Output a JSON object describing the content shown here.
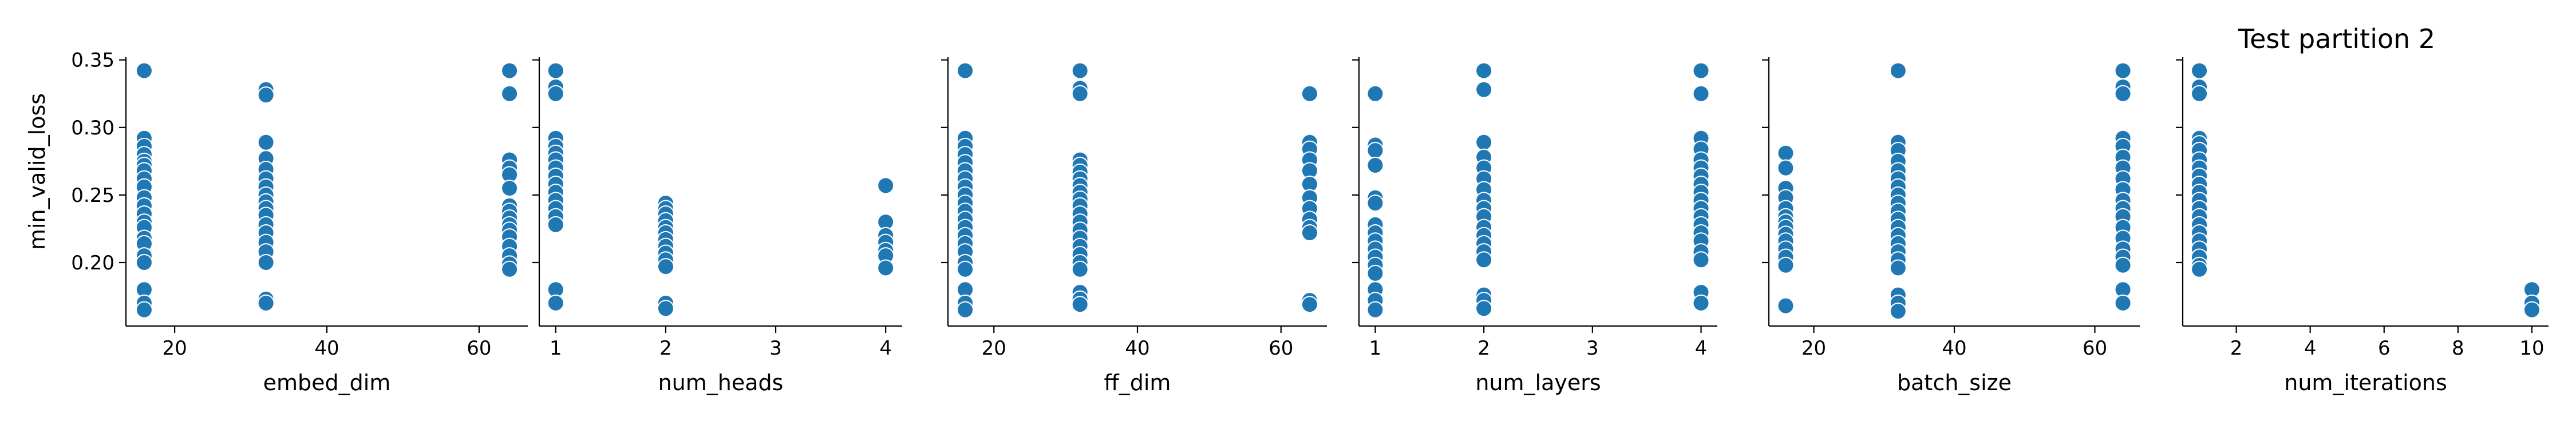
{
  "figure": {
    "title": "Test partition 2",
    "ylabel": "min_valid_loss",
    "marker_color": "#1f77b4",
    "marker_edge_color": "#ffffff"
  },
  "chart_data": [
    {
      "type": "scatter",
      "xlabel": "embed_dim",
      "ylabel": "min_valid_loss",
      "xlim": [
        13.6,
        66.4
      ],
      "ylim": [
        0.153,
        0.352
      ],
      "xticks": [
        20,
        40,
        60
      ],
      "yticks": [
        0.2,
        0.25,
        0.3,
        0.35
      ],
      "grid": false,
      "points": [
        [
          16,
          0.342
        ],
        [
          16,
          0.292
        ],
        [
          16,
          0.286
        ],
        [
          16,
          0.28
        ],
        [
          16,
          0.275
        ],
        [
          16,
          0.272
        ],
        [
          16,
          0.268
        ],
        [
          16,
          0.262
        ],
        [
          16,
          0.256
        ],
        [
          16,
          0.248
        ],
        [
          16,
          0.242
        ],
        [
          16,
          0.236
        ],
        [
          16,
          0.23
        ],
        [
          16,
          0.226
        ],
        [
          16,
          0.218
        ],
        [
          16,
          0.214
        ],
        [
          16,
          0.205
        ],
        [
          16,
          0.2
        ],
        [
          16,
          0.18
        ],
        [
          16,
          0.17
        ],
        [
          16,
          0.165
        ],
        [
          32,
          0.328
        ],
        [
          32,
          0.324
        ],
        [
          32,
          0.289
        ],
        [
          32,
          0.277
        ],
        [
          32,
          0.269
        ],
        [
          32,
          0.262
        ],
        [
          32,
          0.256
        ],
        [
          32,
          0.25
        ],
        [
          32,
          0.245
        ],
        [
          32,
          0.24
        ],
        [
          32,
          0.235
        ],
        [
          32,
          0.228
        ],
        [
          32,
          0.222
        ],
        [
          32,
          0.215
        ],
        [
          32,
          0.208
        ],
        [
          32,
          0.2
        ],
        [
          32,
          0.173
        ],
        [
          32,
          0.17
        ],
        [
          64,
          0.342
        ],
        [
          64,
          0.325
        ],
        [
          64,
          0.276
        ],
        [
          64,
          0.27
        ],
        [
          64,
          0.265
        ],
        [
          64,
          0.255
        ],
        [
          64,
          0.242
        ],
        [
          64,
          0.238
        ],
        [
          64,
          0.233
        ],
        [
          64,
          0.228
        ],
        [
          64,
          0.224
        ],
        [
          64,
          0.219
        ],
        [
          64,
          0.212
        ],
        [
          64,
          0.205
        ],
        [
          64,
          0.199
        ],
        [
          64,
          0.195
        ]
      ]
    },
    {
      "type": "scatter",
      "xlabel": "num_heads",
      "ylim": [
        0.153,
        0.352
      ],
      "xlim": [
        0.85,
        4.15
      ],
      "xticks": [
        1,
        2,
        3,
        4
      ],
      "grid": false,
      "points": [
        [
          1,
          0.342
        ],
        [
          1,
          0.33
        ],
        [
          1,
          0.325
        ],
        [
          1,
          0.292
        ],
        [
          1,
          0.286
        ],
        [
          1,
          0.281
        ],
        [
          1,
          0.276
        ],
        [
          1,
          0.27
        ],
        [
          1,
          0.264
        ],
        [
          1,
          0.258
        ],
        [
          1,
          0.252
        ],
        [
          1,
          0.246
        ],
        [
          1,
          0.24
        ],
        [
          1,
          0.234
        ],
        [
          1,
          0.228
        ],
        [
          1,
          0.18
        ],
        [
          1,
          0.17
        ],
        [
          2,
          0.244
        ],
        [
          2,
          0.24
        ],
        [
          2,
          0.236
        ],
        [
          2,
          0.231
        ],
        [
          2,
          0.226
        ],
        [
          2,
          0.222
        ],
        [
          2,
          0.217
        ],
        [
          2,
          0.212
        ],
        [
          2,
          0.207
        ],
        [
          2,
          0.202
        ],
        [
          2,
          0.197
        ],
        [
          2,
          0.17
        ],
        [
          2,
          0.166
        ],
        [
          4,
          0.257
        ],
        [
          4,
          0.23
        ],
        [
          4,
          0.22
        ],
        [
          4,
          0.215
        ],
        [
          4,
          0.209
        ],
        [
          4,
          0.205
        ],
        [
          4,
          0.196
        ]
      ]
    },
    {
      "type": "scatter",
      "xlabel": "ff_dim",
      "ylim": [
        0.153,
        0.352
      ],
      "xlim": [
        13.6,
        66.4
      ],
      "xticks": [
        20,
        40,
        60
      ],
      "grid": false,
      "points": [
        [
          16,
          0.342
        ],
        [
          16,
          0.292
        ],
        [
          16,
          0.286
        ],
        [
          16,
          0.28
        ],
        [
          16,
          0.274
        ],
        [
          16,
          0.268
        ],
        [
          16,
          0.262
        ],
        [
          16,
          0.256
        ],
        [
          16,
          0.25
        ],
        [
          16,
          0.244
        ],
        [
          16,
          0.238
        ],
        [
          16,
          0.232
        ],
        [
          16,
          0.226
        ],
        [
          16,
          0.22
        ],
        [
          16,
          0.214
        ],
        [
          16,
          0.208
        ],
        [
          16,
          0.2
        ],
        [
          16,
          0.195
        ],
        [
          16,
          0.18
        ],
        [
          16,
          0.17
        ],
        [
          16,
          0.165
        ],
        [
          32,
          0.342
        ],
        [
          32,
          0.329
        ],
        [
          32,
          0.325
        ],
        [
          32,
          0.276
        ],
        [
          32,
          0.272
        ],
        [
          32,
          0.267
        ],
        [
          32,
          0.262
        ],
        [
          32,
          0.257
        ],
        [
          32,
          0.252
        ],
        [
          32,
          0.247
        ],
        [
          32,
          0.242
        ],
        [
          32,
          0.236
        ],
        [
          32,
          0.23
        ],
        [
          32,
          0.224
        ],
        [
          32,
          0.218
        ],
        [
          32,
          0.212
        ],
        [
          32,
          0.206
        ],
        [
          32,
          0.2
        ],
        [
          32,
          0.195
        ],
        [
          32,
          0.178
        ],
        [
          32,
          0.173
        ],
        [
          32,
          0.169
        ],
        [
          64,
          0.325
        ],
        [
          64,
          0.289
        ],
        [
          64,
          0.284
        ],
        [
          64,
          0.276
        ],
        [
          64,
          0.268
        ],
        [
          64,
          0.258
        ],
        [
          64,
          0.248
        ],
        [
          64,
          0.24
        ],
        [
          64,
          0.232
        ],
        [
          64,
          0.226
        ],
        [
          64,
          0.222
        ],
        [
          64,
          0.172
        ],
        [
          64,
          0.169
        ]
      ]
    },
    {
      "type": "scatter",
      "xlabel": "num_layers",
      "ylim": [
        0.153,
        0.352
      ],
      "xlim": [
        0.85,
        4.15
      ],
      "xticks": [
        1,
        2,
        3,
        4
      ],
      "grid": false,
      "points": [
        [
          1,
          0.325
        ],
        [
          1,
          0.287
        ],
        [
          1,
          0.283
        ],
        [
          1,
          0.272
        ],
        [
          1,
          0.248
        ],
        [
          1,
          0.244
        ],
        [
          1,
          0.228
        ],
        [
          1,
          0.222
        ],
        [
          1,
          0.216
        ],
        [
          1,
          0.21
        ],
        [
          1,
          0.204
        ],
        [
          1,
          0.198
        ],
        [
          1,
          0.192
        ],
        [
          1,
          0.18
        ],
        [
          1,
          0.172
        ],
        [
          1,
          0.165
        ],
        [
          2,
          0.342
        ],
        [
          2,
          0.328
        ],
        [
          2,
          0.289
        ],
        [
          2,
          0.278
        ],
        [
          2,
          0.27
        ],
        [
          2,
          0.262
        ],
        [
          2,
          0.254
        ],
        [
          2,
          0.246
        ],
        [
          2,
          0.24
        ],
        [
          2,
          0.234
        ],
        [
          2,
          0.226
        ],
        [
          2,
          0.22
        ],
        [
          2,
          0.214
        ],
        [
          2,
          0.208
        ],
        [
          2,
          0.202
        ],
        [
          2,
          0.176
        ],
        [
          2,
          0.172
        ],
        [
          2,
          0.166
        ],
        [
          4,
          0.342
        ],
        [
          4,
          0.325
        ],
        [
          4,
          0.292
        ],
        [
          4,
          0.284
        ],
        [
          4,
          0.276
        ],
        [
          4,
          0.27
        ],
        [
          4,
          0.264
        ],
        [
          4,
          0.258
        ],
        [
          4,
          0.252
        ],
        [
          4,
          0.246
        ],
        [
          4,
          0.24
        ],
        [
          4,
          0.234
        ],
        [
          4,
          0.228
        ],
        [
          4,
          0.222
        ],
        [
          4,
          0.216
        ],
        [
          4,
          0.208
        ],
        [
          4,
          0.202
        ],
        [
          4,
          0.178
        ],
        [
          4,
          0.17
        ]
      ]
    },
    {
      "type": "scatter",
      "xlabel": "batch_size",
      "ylim": [
        0.153,
        0.352
      ],
      "xlim": [
        13.6,
        66.4
      ],
      "xticks": [
        20,
        40,
        60
      ],
      "grid": false,
      "points": [
        [
          16,
          0.281
        ],
        [
          16,
          0.27
        ],
        [
          16,
          0.255
        ],
        [
          16,
          0.248
        ],
        [
          16,
          0.24
        ],
        [
          16,
          0.234
        ],
        [
          16,
          0.23
        ],
        [
          16,
          0.226
        ],
        [
          16,
          0.221
        ],
        [
          16,
          0.216
        ],
        [
          16,
          0.21
        ],
        [
          16,
          0.204
        ],
        [
          16,
          0.198
        ],
        [
          16,
          0.168
        ],
        [
          32,
          0.342
        ],
        [
          32,
          0.289
        ],
        [
          32,
          0.283
        ],
        [
          32,
          0.275
        ],
        [
          32,
          0.268
        ],
        [
          32,
          0.262
        ],
        [
          32,
          0.256
        ],
        [
          32,
          0.25
        ],
        [
          32,
          0.244
        ],
        [
          32,
          0.238
        ],
        [
          32,
          0.232
        ],
        [
          32,
          0.226
        ],
        [
          32,
          0.22
        ],
        [
          32,
          0.214
        ],
        [
          32,
          0.208
        ],
        [
          32,
          0.202
        ],
        [
          32,
          0.196
        ],
        [
          32,
          0.176
        ],
        [
          32,
          0.17
        ],
        [
          32,
          0.164
        ],
        [
          64,
          0.342
        ],
        [
          64,
          0.33
        ],
        [
          64,
          0.325
        ],
        [
          64,
          0.292
        ],
        [
          64,
          0.286
        ],
        [
          64,
          0.278
        ],
        [
          64,
          0.27
        ],
        [
          64,
          0.262
        ],
        [
          64,
          0.254
        ],
        [
          64,
          0.246
        ],
        [
          64,
          0.24
        ],
        [
          64,
          0.234
        ],
        [
          64,
          0.226
        ],
        [
          64,
          0.218
        ],
        [
          64,
          0.21
        ],
        [
          64,
          0.204
        ],
        [
          64,
          0.198
        ],
        [
          64,
          0.18
        ],
        [
          64,
          0.17
        ]
      ]
    },
    {
      "type": "scatter",
      "xlabel": "num_iterations",
      "ylim": [
        0.153,
        0.352
      ],
      "xlim": [
        0.55,
        10.45
      ],
      "xticks": [
        2,
        4,
        6,
        8,
        10
      ],
      "grid": false,
      "points": [
        [
          1,
          0.342
        ],
        [
          1,
          0.33
        ],
        [
          1,
          0.325
        ],
        [
          1,
          0.292
        ],
        [
          1,
          0.288
        ],
        [
          1,
          0.283
        ],
        [
          1,
          0.276
        ],
        [
          1,
          0.27
        ],
        [
          1,
          0.264
        ],
        [
          1,
          0.258
        ],
        [
          1,
          0.252
        ],
        [
          1,
          0.246
        ],
        [
          1,
          0.24
        ],
        [
          1,
          0.234
        ],
        [
          1,
          0.228
        ],
        [
          1,
          0.222
        ],
        [
          1,
          0.216
        ],
        [
          1,
          0.21
        ],
        [
          1,
          0.204
        ],
        [
          1,
          0.198
        ],
        [
          1,
          0.195
        ],
        [
          10,
          0.18
        ],
        [
          10,
          0.17
        ],
        [
          10,
          0.165
        ]
      ]
    }
  ]
}
